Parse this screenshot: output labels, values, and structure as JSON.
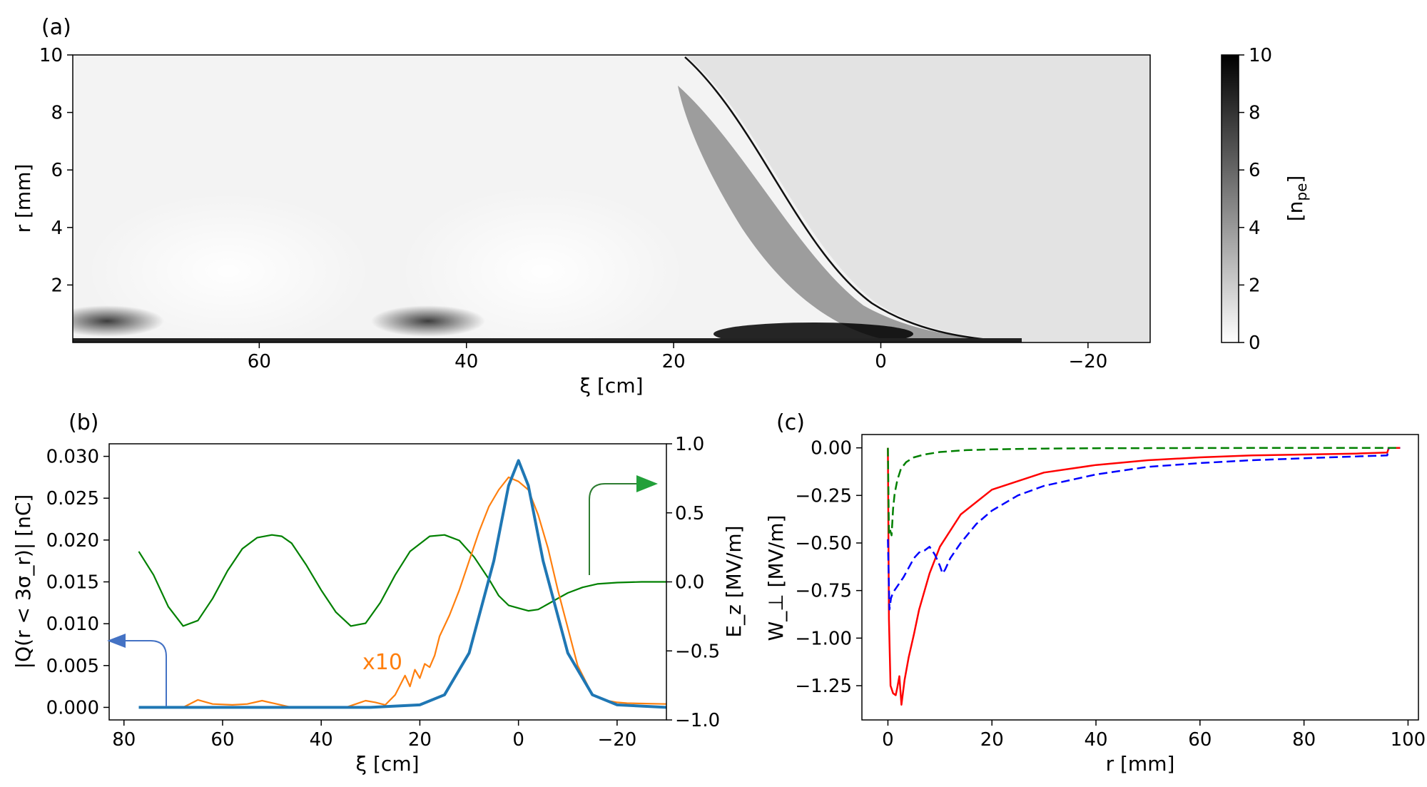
{
  "panels": {
    "a": "(a)",
    "b": "(b)",
    "c": "(c)"
  },
  "chart_data": [
    {
      "panel": "(a)",
      "type": "heatmap",
      "xlabel": "ξ [cm]",
      "ylabel": "r [mm]",
      "xlim": [
        78,
        -26
      ],
      "ylim": [
        0,
        10
      ],
      "xticks": [
        60,
        40,
        20,
        0,
        -20
      ],
      "xtick_labels": [
        "60",
        "40",
        "20",
        "0",
        "−20"
      ],
      "yticks": [
        2,
        4,
        6,
        8,
        10
      ],
      "ytick_labels": [
        "2",
        "4",
        "6",
        "8",
        "10"
      ],
      "colorbar": {
        "label": "[n_pe]",
        "label_main": "[n",
        "label_sub": "pe",
        "label_close": "]",
        "range": [
          0,
          10
        ],
        "ticks": [
          0,
          2,
          4,
          6,
          8,
          10
        ],
        "tick_labels": [
          "0",
          "2",
          "4",
          "6",
          "8",
          "10"
        ]
      },
      "colormap": [
        "#ffffff",
        "#000000"
      ],
      "background_density": 1.5,
      "features": {
        "dense_ridges_xi": [
          72,
          41,
          0
        ],
        "front_edge_xi": -13
      }
    },
    {
      "panel": "(b)",
      "type": "line",
      "xlabel": "ξ [cm]",
      "ylabel": "|Q(r < 3σ_r)| [nC]",
      "ylabel_right": "E_z [MV/m]",
      "xlim": [
        83,
        -30
      ],
      "ylim": [
        -0.0015,
        0.0315
      ],
      "ylim_right": [
        -1.0,
        1.0
      ],
      "xticks": [
        80,
        60,
        40,
        20,
        0,
        -20
      ],
      "xtick_labels": [
        "80",
        "60",
        "40",
        "20",
        "0",
        "−20"
      ],
      "yticks": [
        0.0,
        0.005,
        0.01,
        0.015,
        0.02,
        0.025,
        0.03
      ],
      "ytick_labels": [
        "0.000",
        "0.005",
        "0.010",
        "0.015",
        "0.020",
        "0.025",
        "0.030"
      ],
      "yticks_right": [
        -1.0,
        -0.5,
        0.0,
        0.5,
        1.0
      ],
      "ytick_labels_right": [
        "−1.0",
        "−0.5",
        "0.0",
        "0.5",
        "1.0"
      ],
      "annotation": "x10",
      "series": [
        {
          "axis": "left",
          "color": "#1f77b4",
          "x": [
            77,
            30,
            20,
            15,
            10,
            5,
            2,
            0,
            -2,
            -5,
            -10,
            -15,
            -20,
            -30
          ],
          "y": [
            0.0,
            0.0,
            0.0003,
            0.0015,
            0.0065,
            0.0175,
            0.0265,
            0.0295,
            0.0265,
            0.0175,
            0.0065,
            0.0015,
            0.0003,
            0.0
          ]
        },
        {
          "axis": "left",
          "color": "#ff7f0e",
          "x": [
            77,
            68,
            65,
            62,
            58,
            55,
            52,
            49,
            46,
            35,
            31,
            29,
            27,
            25,
            23,
            22,
            21,
            20,
            19,
            18,
            17,
            16,
            14,
            12,
            10,
            8,
            6,
            4,
            2,
            0,
            -2,
            -4,
            -6,
            -8,
            -10,
            -12,
            -15,
            -18,
            -20,
            -22,
            -30
          ],
          "y": [
            0.0,
            0.0,
            0.0009,
            0.0004,
            0.0003,
            0.0004,
            0.0008,
            0.0004,
            0.0,
            0.0,
            0.0008,
            0.0006,
            0.0003,
            0.0015,
            0.0038,
            0.0025,
            0.0045,
            0.0035,
            0.0052,
            0.0048,
            0.0062,
            0.0085,
            0.011,
            0.014,
            0.0175,
            0.021,
            0.024,
            0.026,
            0.0275,
            0.027,
            0.026,
            0.023,
            0.019,
            0.014,
            0.0095,
            0.005,
            0.0015,
            0.0008,
            0.0006,
            0.0005,
            0.0004
          ]
        },
        {
          "axis": "right",
          "color": "#008000",
          "x": [
            77,
            74,
            71,
            68,
            65,
            62,
            59,
            56,
            53,
            50,
            48,
            46,
            43,
            40,
            37,
            34,
            31,
            28,
            25,
            22,
            18,
            15,
            12,
            9,
            6,
            4,
            2,
            0,
            -2,
            -4,
            -6,
            -8,
            -10,
            -13,
            -16,
            -20,
            -25,
            -30
          ],
          "y": [
            0.22,
            0.05,
            -0.18,
            -0.32,
            -0.28,
            -0.12,
            0.08,
            0.24,
            0.32,
            0.34,
            0.33,
            0.28,
            0.12,
            -0.06,
            -0.22,
            -0.32,
            -0.3,
            -0.15,
            0.05,
            0.22,
            0.33,
            0.34,
            0.3,
            0.18,
            0.02,
            -0.1,
            -0.17,
            -0.19,
            -0.21,
            -0.2,
            -0.16,
            -0.12,
            -0.08,
            -0.04,
            -0.015,
            -0.005,
            0.0,
            0.0
          ]
        }
      ]
    },
    {
      "panel": "(c)",
      "type": "line",
      "xlabel": "r [mm]",
      "ylabel": "W_⊥ [MV/m]",
      "xlim": [
        -5,
        102
      ],
      "ylim": [
        -1.43,
        0.07
      ],
      "xticks": [
        0,
        20,
        40,
        60,
        80,
        100
      ],
      "xtick_labels": [
        "0",
        "20",
        "40",
        "60",
        "80",
        "100"
      ],
      "yticks": [
        0.0,
        -0.25,
        -0.5,
        -0.75,
        -1.0,
        -1.25
      ],
      "ytick_labels": [
        "0.00",
        "−0.25",
        "−0.50",
        "−0.75",
        "−1.00",
        "−1.25"
      ],
      "series": [
        {
          "color": "#ff0000",
          "style": "solid",
          "x": [
            0.0,
            0.2,
            0.5,
            1.0,
            1.5,
            1.8,
            2.2,
            2.6,
            3.2,
            4.0,
            5,
            6,
            8,
            10,
            14,
            20,
            30,
            40,
            50,
            60,
            70,
            80,
            90,
            96,
            96.3,
            98.5
          ],
          "y": [
            0.0,
            -0.9,
            -1.25,
            -1.29,
            -1.3,
            -1.26,
            -1.2,
            -1.35,
            -1.22,
            -1.1,
            -0.98,
            -0.85,
            -0.66,
            -0.52,
            -0.35,
            -0.22,
            -0.13,
            -0.09,
            -0.065,
            -0.05,
            -0.04,
            -0.035,
            -0.03,
            -0.025,
            0.0,
            0.0
          ]
        },
        {
          "color": "#0000ff",
          "style": "dashed",
          "x": [
            0.0,
            0.3,
            0.6,
            1.0,
            2,
            3,
            4,
            5,
            6,
            7,
            8,
            9,
            10,
            10.5,
            11,
            12,
            14,
            17,
            20,
            25,
            30,
            40,
            50,
            60,
            70,
            80,
            90,
            96,
            96.3,
            98.5
          ],
          "y": [
            -0.48,
            -0.85,
            -0.79,
            -0.76,
            -0.72,
            -0.68,
            -0.63,
            -0.58,
            -0.55,
            -0.54,
            -0.52,
            -0.56,
            -0.62,
            -0.66,
            -0.64,
            -0.58,
            -0.5,
            -0.4,
            -0.33,
            -0.25,
            -0.2,
            -0.14,
            -0.1,
            -0.08,
            -0.065,
            -0.055,
            -0.045,
            -0.04,
            0.0,
            0.0
          ]
        },
        {
          "color": "#008000",
          "style": "dashed",
          "x": [
            0.0,
            0.2,
            0.4,
            0.7,
            1.0,
            1.3,
            1.8,
            2.5,
            3.5,
            5,
            7,
            10,
            15,
            20,
            30,
            40,
            60,
            80,
            98.5
          ],
          "y": [
            0.0,
            -0.45,
            -0.43,
            -0.46,
            -0.32,
            -0.24,
            -0.17,
            -0.11,
            -0.075,
            -0.05,
            -0.035,
            -0.022,
            -0.012,
            -0.008,
            -0.004,
            -0.002,
            -0.001,
            0.0,
            0.0
          ]
        }
      ]
    }
  ]
}
